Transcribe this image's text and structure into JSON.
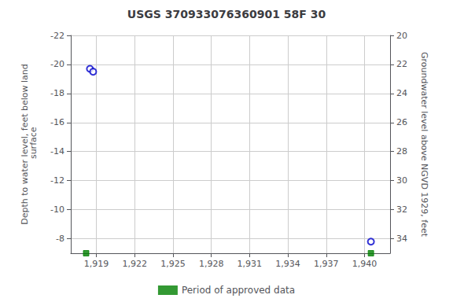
{
  "chart_data": {
    "type": "scatter",
    "title": "USGS 370933076360901 58F 30",
    "ylabel": "Depth to water level, feet below land\n surface",
    "y2label": "Groundwater level above NGVD 1929, feet",
    "xlim": [
      1917.0,
      1942.0
    ],
    "xticks": [
      1919,
      1922,
      1925,
      1928,
      1931,
      1934,
      1937,
      1940
    ],
    "ylim": [
      -22,
      -7
    ],
    "yticks": [
      -22,
      -20,
      -18,
      -16,
      -14,
      -12,
      -10,
      -8
    ],
    "y2lim": [
      20,
      35
    ],
    "y2ticks": [
      20,
      22,
      24,
      26,
      28,
      30,
      32,
      34
    ],
    "grid": true,
    "legend": "bottom",
    "series": [
      {
        "color": "#0000cc",
        "marker": "open_circle",
        "x": [
          1918.5,
          1918.75,
          1940.5
        ],
        "values": [
          -19.7,
          -19.5,
          -7.8
        ]
      },
      {
        "name": "Period of approved data",
        "color": "#008000",
        "marker": "square",
        "x": [
          1918.2,
          1940.5
        ],
        "values": [
          -7.0,
          -7.0
        ]
      }
    ]
  }
}
